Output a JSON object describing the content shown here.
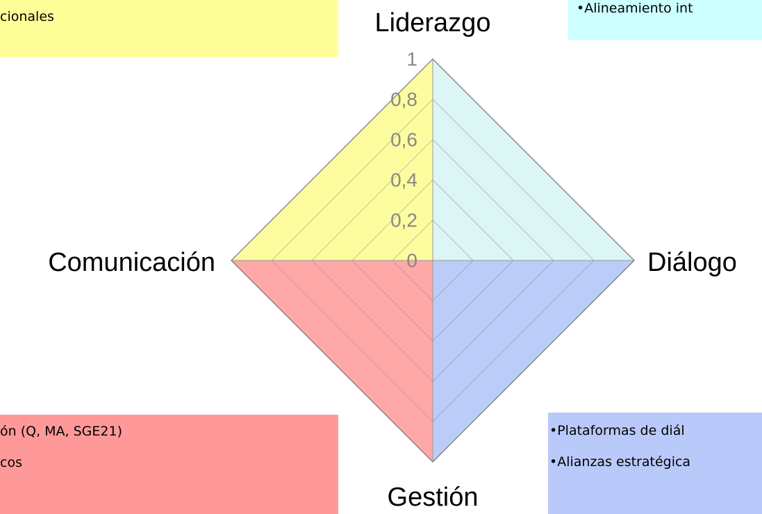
{
  "chart_data": {
    "type": "radar",
    "categories": [
      "Liderazgo",
      "Diálogo",
      "Gestión",
      "Comunicación"
    ],
    "values": [
      1,
      1,
      1,
      1
    ],
    "quadrant_colors": [
      "#d8f4f4",
      "#b4c6f8",
      "#ff9e9e",
      "#fdfd96"
    ],
    "ylim": [
      0,
      1
    ],
    "yticks": [
      0,
      {
        "value": 0.2,
        "label": "0,2"
      },
      {
        "value": 0.4,
        "label": "0,4"
      },
      {
        "value": 0.6,
        "label": "0,6"
      },
      {
        "value": 0.8,
        "label": "0,8"
      },
      1
    ],
    "grid": true
  },
  "boxes": [
    {
      "lines": [
        "cionales"
      ]
    },
    {
      "lines": [
        "•Alineamiento int"
      ]
    },
    {
      "lines": [
        "ón (Q, MA, SGE21)",
        "cos"
      ]
    },
    {
      "lines": [
        "•Plataformas de diál",
        "•Alianzas estratégica"
      ]
    }
  ]
}
